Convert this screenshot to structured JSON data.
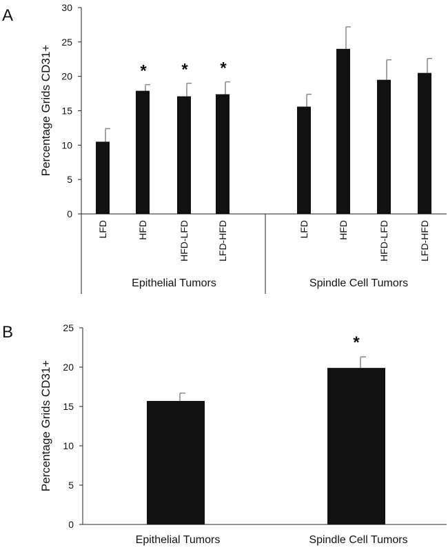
{
  "chart_data": [
    {
      "panel": "A",
      "type": "bar",
      "ylabel": "Percentage Grids CD31+",
      "ylim": [
        0,
        30
      ],
      "yticks": [
        "0",
        "5",
        "10",
        "15",
        "20",
        "25",
        "30"
      ],
      "groups": [
        {
          "label": "Epithelial Tumors",
          "categories": [
            "LFD",
            "HFD",
            "HFD-LFD",
            "LFD-HFD"
          ],
          "values": [
            10.5,
            17.9,
            17.1,
            17.4
          ],
          "errors": [
            1.9,
            0.9,
            1.9,
            1.8
          ],
          "significance": [
            "",
            "*",
            "*",
            "*"
          ]
        },
        {
          "label": "Spindle Cell Tumors",
          "categories": [
            "LFD",
            "HFD",
            "HFD-LFD",
            "LFD-HFD"
          ],
          "values": [
            15.6,
            24.0,
            19.5,
            20.5
          ],
          "errors": [
            1.8,
            3.2,
            2.9,
            2.1
          ],
          "significance": [
            "",
            "",
            "",
            ""
          ]
        }
      ],
      "bar_color": "#111111",
      "error_color": "#888888",
      "grid": false
    },
    {
      "panel": "B",
      "type": "bar",
      "ylabel": "Percentage Grids CD31+",
      "ylim": [
        0,
        25
      ],
      "yticks": [
        "0",
        "5",
        "10",
        "15",
        "20",
        "25"
      ],
      "categories": [
        "Epithelial Tumors",
        "Spindle Cell Tumors"
      ],
      "values": [
        15.7,
        19.9
      ],
      "errors": [
        1.0,
        1.4
      ],
      "significance": [
        "",
        "*"
      ],
      "bar_color": "#111111",
      "error_color": "#888888",
      "grid": false
    }
  ]
}
